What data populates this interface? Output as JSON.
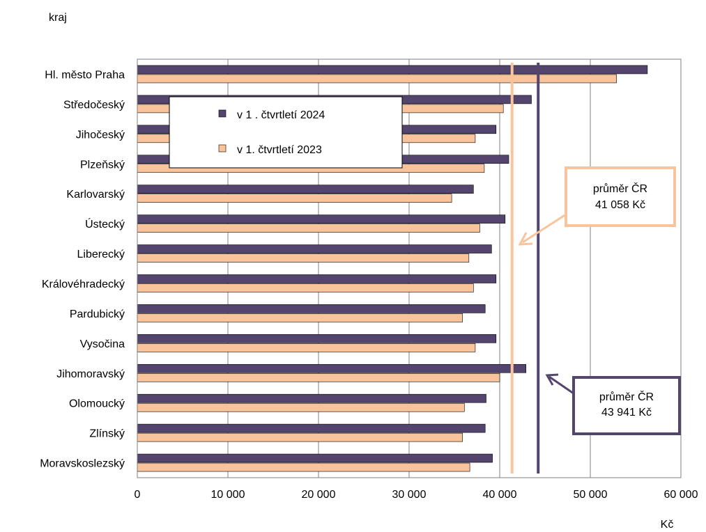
{
  "chart_data": {
    "type": "bar",
    "orientation": "horizontal",
    "ylabel": "kraj",
    "xlabel": "Kč",
    "xlim": [
      0,
      60000
    ],
    "xticks": [
      0,
      10000,
      20000,
      30000,
      40000,
      50000,
      60000
    ],
    "xtick_labels": [
      "0",
      "10 000",
      "20 000",
      "30 000",
      "40 000",
      "50 000",
      "60 000"
    ],
    "grid": true,
    "categories": [
      "Hl. město Praha",
      "Středočeský",
      "Jihočeský",
      "Plzeňský",
      "Karlovarský",
      "Ústecký",
      "Liberecký",
      "Královéhradecký",
      "Pardubický",
      "Vysočina",
      "Jihomoravský",
      "Olomoucký",
      "Zlínský",
      "Moravskoslezský"
    ],
    "series": [
      {
        "name": "v 1 . čtvrtletí 2024",
        "color": "#54456E",
        "values": [
          56300,
          43500,
          39600,
          41000,
          37100,
          40600,
          39100,
          39600,
          38400,
          39600,
          42900,
          38500,
          38400,
          39200
        ]
      },
      {
        "name": "v 1. čtvrtletí 2023",
        "color": "#F9C39B",
        "values": [
          52900,
          40400,
          37300,
          38300,
          34700,
          37800,
          36600,
          37100,
          35900,
          37300,
          40000,
          36100,
          35900,
          36700
        ]
      }
    ],
    "legend": "top-left",
    "reference_lines": [
      {
        "value": 41058,
        "color": "#F9C39B",
        "label_line1": "průměr ČR",
        "label_line2": "41 058 Kč"
      },
      {
        "value": 43941,
        "color": "#54456E",
        "label_line1": "průměr ČR",
        "label_line2": "43 941 Kč"
      }
    ]
  }
}
